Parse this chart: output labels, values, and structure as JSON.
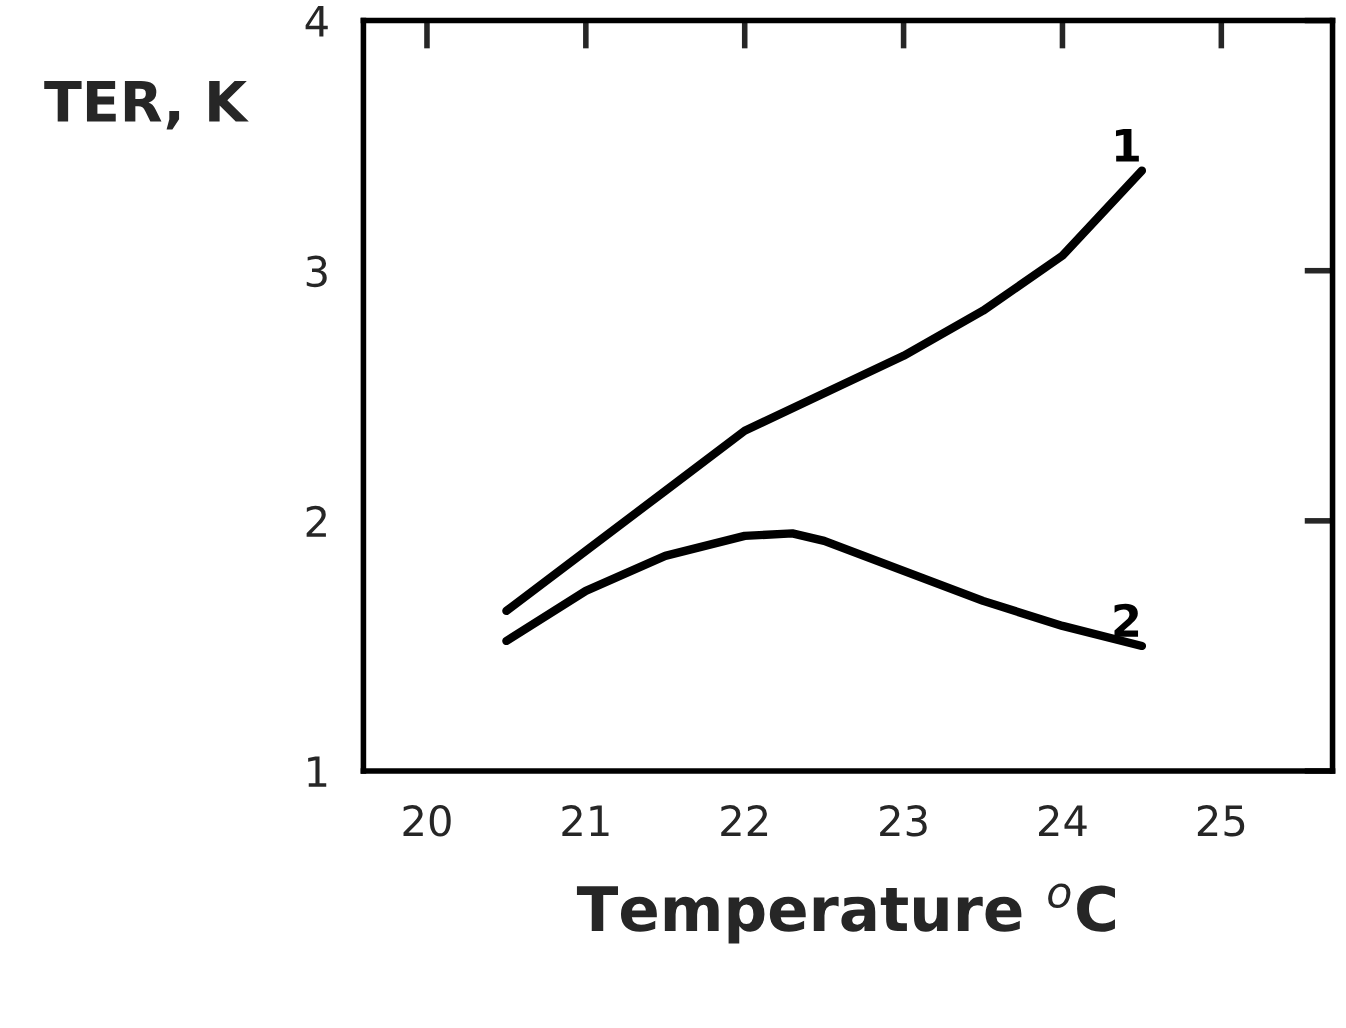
{
  "chart_data": {
    "type": "line",
    "xlabel": "Temperature $^{o}$C",
    "ylabel": "TER, K",
    "xlim": [
      19.6,
      25.7
    ],
    "ylim": [
      1,
      4
    ],
    "xticks": [
      20,
      21,
      22,
      23,
      24,
      25
    ],
    "yticks": [
      1,
      2,
      3,
      4
    ],
    "grid": false,
    "legend": false,
    "marker": "none",
    "line_style": "solid",
    "series": [
      {
        "name": "1",
        "color": "#000000",
        "x": [
          20.5,
          21,
          21.5,
          22,
          22.5,
          23,
          23.5,
          24,
          24.5
        ],
        "values": [
          1.64,
          1.88,
          2.12,
          2.36,
          2.51,
          2.66,
          2.84,
          3.06,
          3.4
        ]
      },
      {
        "name": "2",
        "color": "#000000",
        "x": [
          20.5,
          21,
          21.5,
          22,
          22.3,
          22.5,
          23,
          23.5,
          24,
          24.5
        ],
        "values": [
          1.52,
          1.72,
          1.86,
          1.94,
          1.95,
          1.92,
          1.8,
          1.68,
          1.58,
          1.5
        ]
      }
    ]
  }
}
